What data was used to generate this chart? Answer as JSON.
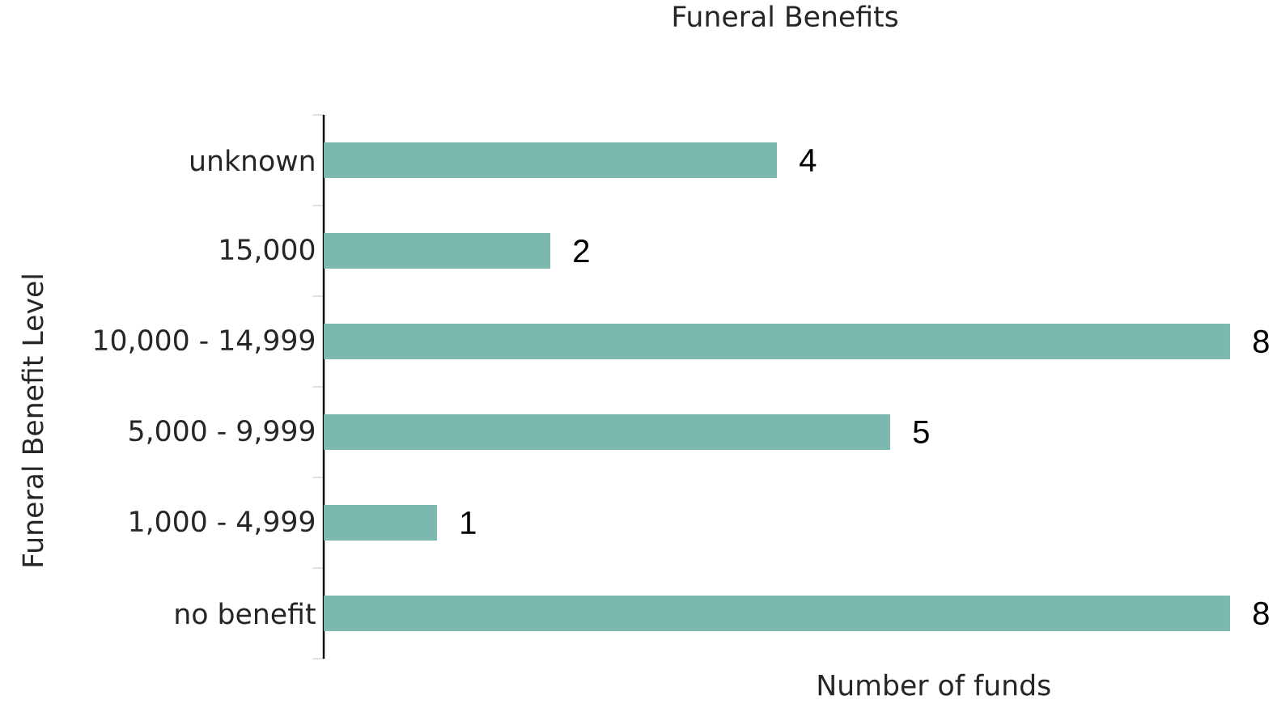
{
  "chart_data": {
    "type": "bar",
    "orientation": "horizontal",
    "title": "Funeral Benefits",
    "xlabel": "Number of funds",
    "ylabel": "Funeral Benefit Level",
    "categories": [
      "unknown",
      "15,000",
      "10,000 - 14,999",
      "5,000 - 9,999",
      "1,000 - 4,999",
      "no benefit"
    ],
    "values": [
      4,
      2,
      8,
      5,
      1,
      8
    ],
    "color": "#7bb8ad",
    "xlim": [
      0,
      8
    ],
    "tick_labels": "y",
    "data_labels": true
  }
}
